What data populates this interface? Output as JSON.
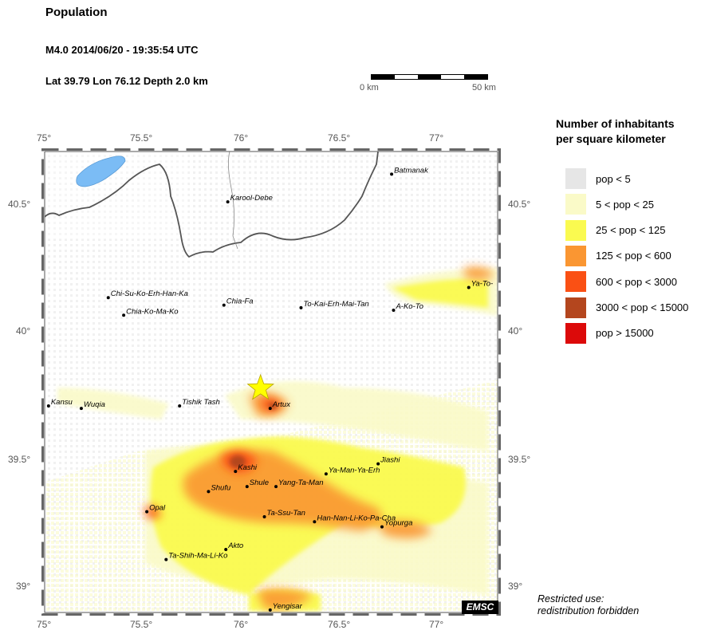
{
  "header": {
    "title": "Population",
    "event": "M4.0  2014/06/20 - 19:35:54 UTC",
    "coords": "Lat 39.79    Lon  76.12      Depth  2.0 km"
  },
  "scale_bar": {
    "left_label": "0 km",
    "right_label": "50 km"
  },
  "axes": {
    "x_ticks": [
      "75°",
      "75.5°",
      "76°",
      "76.5°",
      "77°"
    ],
    "y_ticks": [
      "40.5°",
      "40°",
      "39.5°",
      "39°"
    ]
  },
  "epicenter": {
    "lat": 39.79,
    "lon": 76.12,
    "marker": "star-icon",
    "color": "#ffff00"
  },
  "cities": [
    {
      "name": "Batmanak",
      "lon": 76.8,
      "lat": 40.64
    },
    {
      "name": "Karool-Debe",
      "lon": 75.95,
      "lat": 40.53
    },
    {
      "name": "Chi-Su-Ko-Erh-Han-Ka",
      "lon": 75.33,
      "lat": 40.15
    },
    {
      "name": "Chia-Ko-Ma-Ko",
      "lon": 75.41,
      "lat": 40.08
    },
    {
      "name": "Chia-Fa",
      "lon": 75.93,
      "lat": 40.12
    },
    {
      "name": "To-Kai-Erh-Mai-Tan",
      "lon": 76.33,
      "lat": 40.11
    },
    {
      "name": "A-Ko-To",
      "lon": 76.81,
      "lat": 40.1
    },
    {
      "name": "Ya-To-",
      "lon": 77.2,
      "lat": 40.19
    },
    {
      "name": "Kansu",
      "lon": 75.02,
      "lat": 39.72
    },
    {
      "name": "Wuqia",
      "lon": 75.19,
      "lat": 39.71
    },
    {
      "name": "Tishik Tash",
      "lon": 75.7,
      "lat": 39.72
    },
    {
      "name": "Artux",
      "lon": 76.17,
      "lat": 39.71
    },
    {
      "name": "Kashi",
      "lon": 75.99,
      "lat": 39.46
    },
    {
      "name": "Shule",
      "lon": 76.05,
      "lat": 39.4
    },
    {
      "name": "Shufu",
      "lon": 75.85,
      "lat": 39.38
    },
    {
      "name": "Yang-Ta-Man",
      "lon": 76.2,
      "lat": 39.4
    },
    {
      "name": "Ya-Man-Ya-Erh",
      "lon": 76.46,
      "lat": 39.45
    },
    {
      "name": "Jiashi",
      "lon": 76.73,
      "lat": 39.49
    },
    {
      "name": "Opal",
      "lon": 75.53,
      "lat": 39.3
    },
    {
      "name": "Ta-Ssu-Tan",
      "lon": 76.14,
      "lat": 39.28
    },
    {
      "name": "Han-Nan-Li-Ko-Pa-Cha",
      "lon": 76.4,
      "lat": 39.26
    },
    {
      "name": "Yopurga",
      "lon": 76.75,
      "lat": 39.24
    },
    {
      "name": "Akto",
      "lon": 75.94,
      "lat": 39.15
    },
    {
      "name": "Ta-Shih-Ma-Li-Ko",
      "lon": 75.63,
      "lat": 39.11
    },
    {
      "name": "Yengisar",
      "lon": 76.17,
      "lat": 38.91
    }
  ],
  "legend": {
    "title_line1": "Number of inhabitants",
    "title_line2": "per square kilometer",
    "items": [
      {
        "label": "pop < 5",
        "color": "#e6e6e6"
      },
      {
        "label": "5 < pop < 25",
        "color": "#fafac8"
      },
      {
        "label": "25 < pop < 125",
        "color": "#fafa50"
      },
      {
        "label": "125 < pop < 600",
        "color": "#fa9632"
      },
      {
        "label": "600 < pop < 3000",
        "color": "#fa5014"
      },
      {
        "label": "3000 < pop < 15000",
        "color": "#b4461e"
      },
      {
        "label": "pop > 15000",
        "color": "#dc0a0a"
      }
    ]
  },
  "footer": {
    "note_line1": "Restricted use:",
    "note_line2": "redistribution forbidden",
    "logo": "EMSC"
  }
}
